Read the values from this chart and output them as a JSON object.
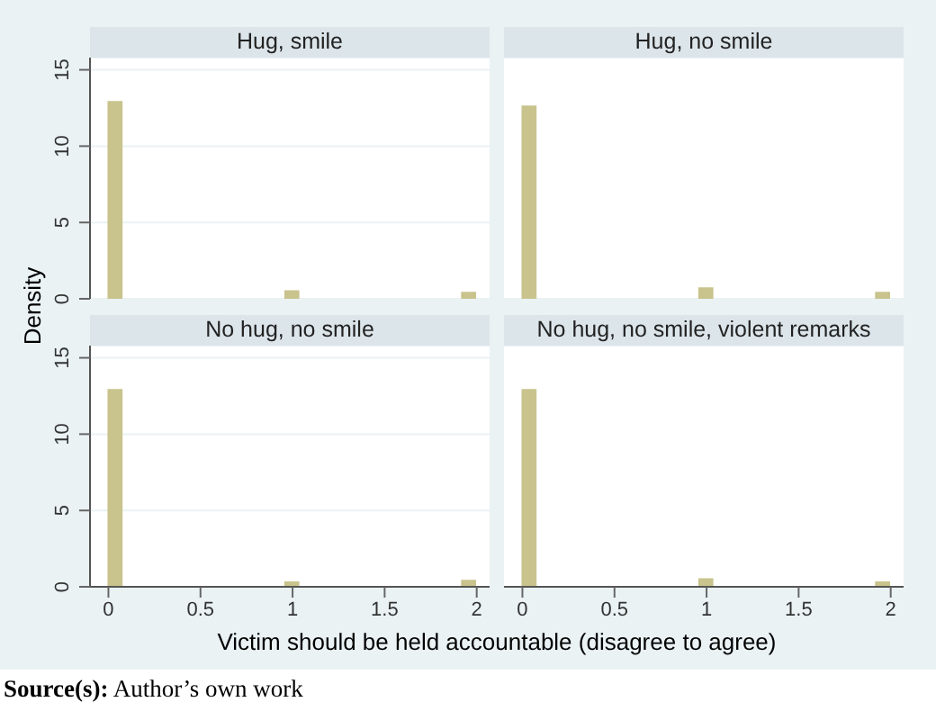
{
  "chart_data": [
    {
      "type": "histogram",
      "title": "Hug, smile",
      "ylabel": "Density",
      "bins": [
        0,
        0.08,
        0.16,
        0.24,
        0.32,
        0.4,
        0.48,
        0.56,
        0.64,
        0.72,
        0.8,
        0.88,
        0.96,
        1.04,
        1.12,
        1.2,
        1.28,
        1.36,
        1.44,
        1.52,
        1.6,
        1.68,
        1.76,
        1.84,
        1.92,
        2
      ],
      "values": [
        12.9,
        0,
        0,
        0,
        0,
        0,
        0,
        0,
        0,
        0,
        0,
        0,
        0.5,
        0,
        0,
        0,
        0,
        0,
        0,
        0,
        0,
        0,
        0,
        0,
        0.4
      ],
      "color": "#c9c38d",
      "xlim": [
        -0.1,
        2.07
      ],
      "ylim": [
        0,
        15.8
      ],
      "xticks": [
        0,
        0.5,
        1,
        1.5,
        2
      ],
      "yticks": [
        0,
        5,
        10,
        15
      ],
      "grid": "y",
      "tick_labels": "y"
    },
    {
      "type": "histogram",
      "title": "Hug, no smile",
      "bins": [
        0,
        0.08,
        0.16,
        0.24,
        0.32,
        0.4,
        0.48,
        0.56,
        0.64,
        0.72,
        0.8,
        0.88,
        0.96,
        1.04,
        1.12,
        1.2,
        1.28,
        1.36,
        1.44,
        1.52,
        1.6,
        1.68,
        1.76,
        1.84,
        1.92,
        2
      ],
      "values": [
        12.6,
        0,
        0,
        0,
        0,
        0,
        0,
        0,
        0,
        0,
        0,
        0,
        0.7,
        0,
        0,
        0,
        0,
        0,
        0,
        0,
        0,
        0,
        0,
        0,
        0.4
      ],
      "color": "#c9c38d",
      "xlim": [
        -0.1,
        2.07
      ],
      "ylim": [
        0,
        15.8
      ],
      "xticks": [
        0,
        0.5,
        1,
        1.5,
        2
      ],
      "yticks": [
        0,
        5,
        10,
        15
      ],
      "grid": "y",
      "tick_labels": false
    },
    {
      "type": "histogram",
      "title": "No hug, no smile",
      "xlabel": "Victim should be held accountable (disagree to agree)",
      "annotations": [
        "Source(s): Author’s own work"
      ],
      "bins": [
        0,
        0.08,
        0.16,
        0.24,
        0.32,
        0.4,
        0.48,
        0.56,
        0.64,
        0.72,
        0.8,
        0.88,
        0.96,
        1.04,
        1.12,
        1.2,
        1.28,
        1.36,
        1.44,
        1.52,
        1.6,
        1.68,
        1.76,
        1.84,
        1.92,
        2
      ],
      "values": [
        12.9,
        0,
        0,
        0,
        0,
        0,
        0,
        0,
        0,
        0,
        0,
        0,
        0.3,
        0,
        0,
        0,
        0,
        0,
        0,
        0,
        0,
        0,
        0,
        0,
        0.4
      ],
      "color": "#c9c38d",
      "xlim": [
        -0.1,
        2.07
      ],
      "ylim": [
        0,
        15.8
      ],
      "xticks": [
        0,
        0.5,
        1,
        1.5,
        2
      ],
      "yticks": [
        0,
        5,
        10,
        15
      ],
      "grid": "y"
    },
    {
      "type": "histogram",
      "title": "No hug, no smile, violent remarks",
      "bins": [
        0,
        0.08,
        0.16,
        0.24,
        0.32,
        0.4,
        0.48,
        0.56,
        0.64,
        0.72,
        0.8,
        0.88,
        0.96,
        1.04,
        1.12,
        1.2,
        1.28,
        1.36,
        1.44,
        1.52,
        1.6,
        1.68,
        1.76,
        1.84,
        1.92,
        2
      ],
      "values": [
        12.9,
        0,
        0,
        0,
        0,
        0,
        0,
        0,
        0,
        0,
        0,
        0,
        0.5,
        0,
        0,
        0,
        0,
        0,
        0,
        0,
        0,
        0,
        0,
        0,
        0.3
      ],
      "color": "#c9c38d",
      "xlim": [
        -0.1,
        2.07
      ],
      "ylim": [
        0,
        15.8
      ],
      "xticks": [
        0,
        0.5,
        1,
        1.5,
        2
      ],
      "yticks": [
        0,
        5,
        10,
        15
      ],
      "grid": "y",
      "tick_labels": "x"
    }
  ]
}
